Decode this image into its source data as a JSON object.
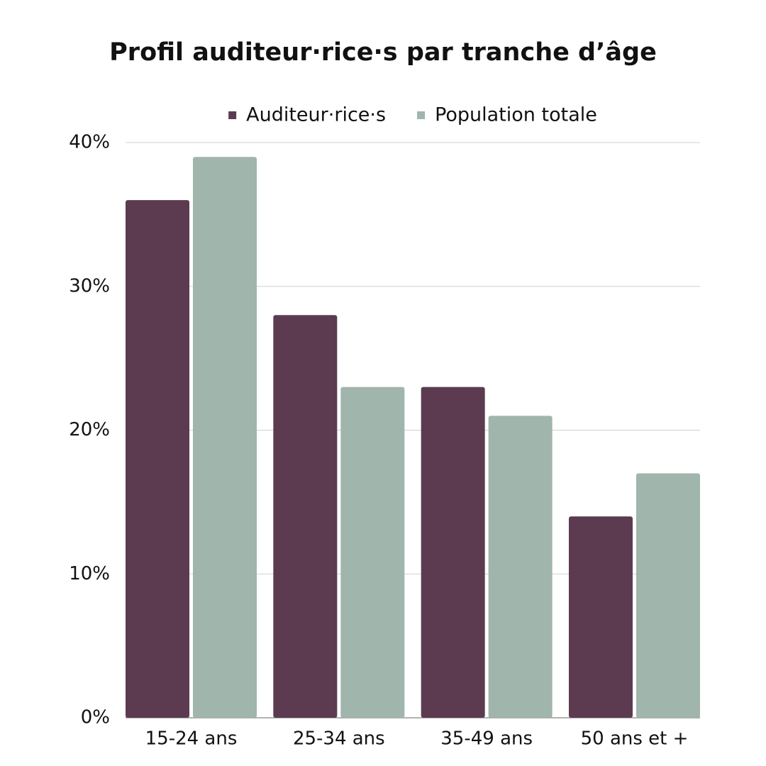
{
  "chart_data": {
    "type": "bar",
    "title": "Profil auditeur·rice·s par tranche d’âge",
    "categories": [
      "15-24 ans",
      "25-34 ans",
      "35-49 ans",
      "50 ans et +"
    ],
    "series": [
      {
        "name": "Auditeur·rice·s",
        "color": "#5c3b51",
        "values": [
          36,
          28,
          23,
          14
        ]
      },
      {
        "name": "Population totale",
        "color": "#a0b5ac",
        "values": [
          39,
          23,
          21,
          17
        ]
      }
    ],
    "ylim": [
      0,
      40
    ],
    "yticks": [
      {
        "value": 0,
        "label": "0%"
      },
      {
        "value": 10,
        "label": "10%"
      },
      {
        "value": 20,
        "label": "20%"
      },
      {
        "value": 30,
        "label": "30%"
      },
      {
        "value": 40,
        "label": "40%"
      }
    ],
    "grid": true,
    "legend": "top"
  }
}
